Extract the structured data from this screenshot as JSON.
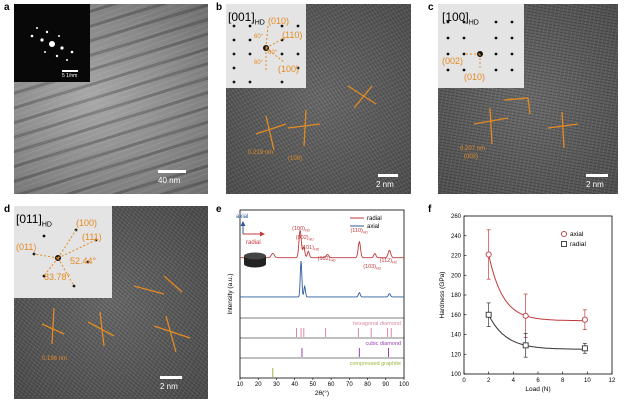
{
  "panel_labels": {
    "a": "a",
    "b": "b",
    "c": "c",
    "d": "d",
    "e": "e",
    "f": "f"
  },
  "panel_a": {
    "scale": "40 nm",
    "inset_scale": "5 1/nm"
  },
  "panel_b": {
    "zone_main": "[001]",
    "zone_sub": "HD",
    "spots": [
      "(010)",
      "(110)",
      "(100)"
    ],
    "angles": [
      "60°",
      "60°",
      "60°"
    ],
    "lattice_labels": [
      "0.219 nm",
      "(100)"
    ],
    "scale": "2 nm"
  },
  "panel_c": {
    "zone_main": "[100]",
    "zone_sub": "HD",
    "spots": [
      "(002)",
      "(010)"
    ],
    "lattice_labels": [
      "0.207 nm",
      "(002)"
    ],
    "scale": "2 nm"
  },
  "panel_d": {
    "zone_main": "[011]",
    "zone_sub": "HD",
    "spots": [
      "(100)",
      "(011)",
      "(111)"
    ],
    "angles": [
      "52.44°",
      "83.78°"
    ],
    "lattice_labels": [
      "0.196 nm"
    ],
    "scale": "2 nm"
  },
  "colors": {
    "annotation": "#e38a23",
    "radial": "#c0393b",
    "axial": "#2f5b9c",
    "hexagonal": "#d98aa0",
    "cubic": "#9b3fb3",
    "graphite": "#9ab83a"
  },
  "chart_data": [
    {
      "type": "line",
      "panel": "e",
      "xlabel": "2θ(°)",
      "ylabel": "Intensity (a.u.)",
      "xlim": [
        10,
        100
      ],
      "xticks": [
        10,
        20,
        30,
        40,
        50,
        60,
        70,
        80,
        90,
        100
      ],
      "legend": {
        "position": "top-right",
        "entries": [
          "radial",
          "axial"
        ]
      },
      "sample_labels": {
        "axial": "axial",
        "radial": "radial"
      },
      "series": [
        {
          "name": "radial",
          "color": "#c0393b",
          "baseline": 0.55,
          "peaks": [
            [
              28,
              0.04,
              1.2
            ],
            [
              43,
              0.26,
              0.9
            ],
            [
              45,
              0.1,
              0.8
            ],
            [
              47.5,
              0.06,
              0.8
            ],
            [
              58,
              0.03,
              1.0
            ],
            [
              75.5,
              0.15,
              0.9
            ],
            [
              84,
              0.04,
              0.8
            ],
            [
              92,
              0.07,
              1.0
            ]
          ]
        },
        {
          "name": "axial",
          "color": "#2f5b9c",
          "baseline": 0.18,
          "peaks": [
            [
              43.5,
              0.34,
              0.6
            ],
            [
              45.5,
              0.1,
              0.6
            ],
            [
              75.5,
              0.04,
              0.7
            ],
            [
              92,
              0.03,
              0.8
            ]
          ]
        }
      ],
      "peak_labels": [
        {
          "text": "(100)",
          "sub": "HD",
          "x": 43
        },
        {
          "text": "(002)",
          "sub": "HD",
          "x": 45
        },
        {
          "text": "(101)",
          "sub": "HD",
          "x": 48
        },
        {
          "text": "(102)",
          "sub": "HD",
          "x": 57
        },
        {
          "text": "(110)",
          "sub": "HD",
          "x": 75
        },
        {
          "text": "(103)",
          "sub": "HD",
          "x": 82
        },
        {
          "text": "(112)",
          "sub": "HD",
          "x": 91
        }
      ],
      "references": [
        {
          "name": "hexagonal diamond",
          "color": "#d98aa0",
          "positions": [
            41,
            43.5,
            45,
            57,
            75,
            82,
            91,
            93
          ]
        },
        {
          "name": "cubic diamond",
          "color": "#9b3fb3",
          "positions": [
            44,
            75.5,
            91.5
          ]
        },
        {
          "name": "compressed graphite",
          "color": "#9ab83a",
          "positions": [
            28
          ]
        }
      ]
    },
    {
      "type": "scatter",
      "panel": "f",
      "xlabel": "Load (N)",
      "ylabel": "Hardness (GPa)",
      "xlim": [
        0,
        12
      ],
      "ylim": [
        100,
        260
      ],
      "xticks": [
        0,
        2,
        4,
        6,
        8,
        10,
        12
      ],
      "yticks": [
        100,
        120,
        140,
        160,
        180,
        200,
        220,
        240,
        260
      ],
      "legend": {
        "position": "top-right",
        "entries": [
          "axial",
          "radial"
        ]
      },
      "series": [
        {
          "name": "axial",
          "color": "#c0393b",
          "marker": "circle",
          "x": [
            2,
            5,
            9.8
          ],
          "y": [
            221,
            159,
            155
          ],
          "err": [
            25,
            22,
            10
          ]
        },
        {
          "name": "radial",
          "color": "#333333",
          "marker": "square",
          "x": [
            2,
            5,
            9.8
          ],
          "y": [
            160,
            129,
            126
          ],
          "err": [
            12,
            12,
            5
          ]
        }
      ]
    }
  ]
}
